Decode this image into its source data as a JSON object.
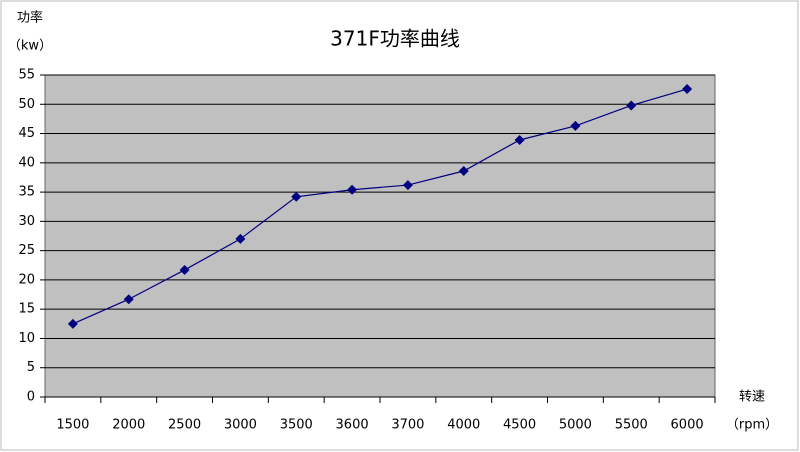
{
  "chart_data": {
    "type": "line",
    "title": "371F功率曲线",
    "y_label": [
      "功率",
      "（kw）"
    ],
    "x_label": [
      "转速",
      "（rpm）"
    ],
    "categories": [
      "1500",
      "2000",
      "2500",
      "3000",
      "3500",
      "3600",
      "3700",
      "4000",
      "4500",
      "5000",
      "5500",
      "6000"
    ],
    "values": [
      12.5,
      16.7,
      21.7,
      27,
      34.2,
      35.4,
      36.2,
      38.6,
      43.9,
      46.3,
      49.8,
      52.6
    ],
    "color": "#000080",
    "plot_background": "#c0c0c0",
    "ylim": [
      0,
      55
    ],
    "yticks": [
      0,
      5,
      10,
      15,
      20,
      25,
      30,
      35,
      40,
      45,
      50,
      55
    ],
    "grid": true
  }
}
